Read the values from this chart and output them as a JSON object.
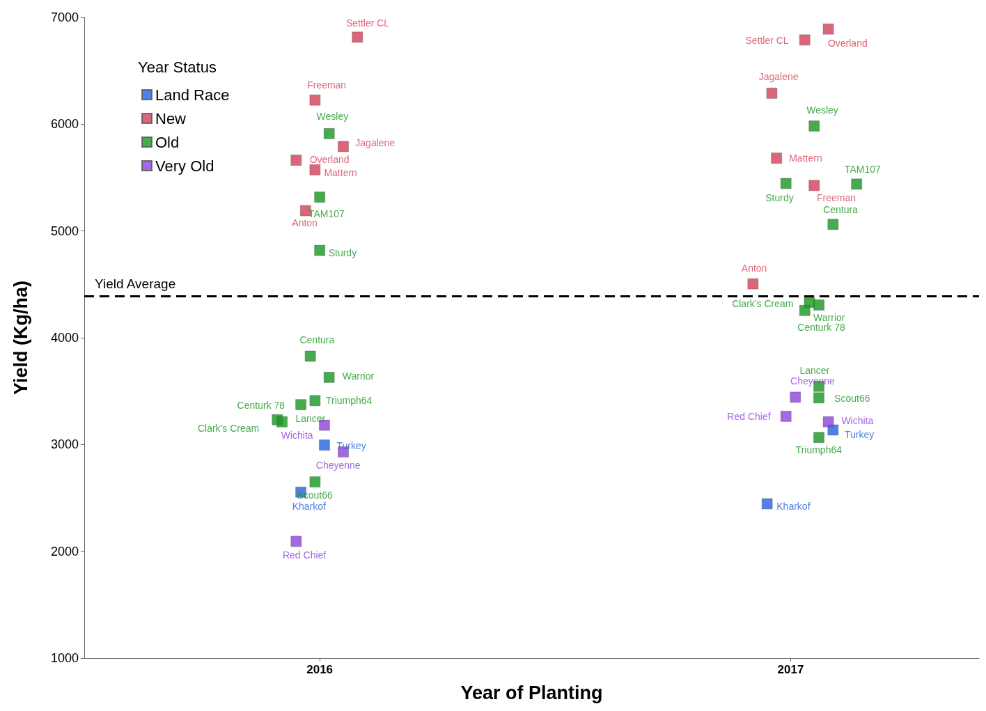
{
  "chart_data": {
    "type": "scatter",
    "xlabel": "Year of Planting",
    "ylabel": "Yield (Kg/ha)",
    "legend_title": "Year Status",
    "legend": "top left",
    "grid": false,
    "marker": "square",
    "xlim": [
      2015.5,
      2017.4
    ],
    "xticks": [
      2016,
      2017
    ],
    "ylim": [
      1000,
      7000
    ],
    "yticks": [
      1000,
      2000,
      3000,
      4000,
      5000,
      6000,
      7000
    ],
    "ref_lines": [
      {
        "axis": "y",
        "value": 4390,
        "label": "Yield Average",
        "color": "#000000",
        "line_style": "dashed"
      }
    ],
    "series": [
      {
        "name": "Land Race",
        "color": "#2462e0",
        "x": [
          2016.01,
          2015.96,
          2017.09,
          2016.95
        ],
        "values": [
          2995,
          2554,
          3136,
          2445
        ],
        "value_labels": [
          "Turkey",
          "Kharkof",
          "Turkey",
          "Kharkof"
        ]
      },
      {
        "name": "New",
        "color": "#d33f57",
        "x": [
          2016.08,
          2015.99,
          2016.05,
          2015.95,
          2015.99,
          2015.97,
          2017.08,
          2017.03,
          2016.96,
          2016.97,
          2017.05,
          2016.92
        ],
        "values": [
          6815,
          6226,
          5791,
          5663,
          5573,
          5190,
          6891,
          6789,
          6290,
          5682,
          5426,
          4505
        ],
        "value_labels": [
          "Settler CL",
          "Freeman",
          "Jagalene",
          "Overland",
          "Mattern",
          "Anton",
          "Overland",
          "Settler CL",
          "Jagalene",
          "Mattern",
          "Freeman",
          "Anton"
        ]
      },
      {
        "name": "Old",
        "color": "#17961f",
        "x": [
          2016.02,
          2016.0,
          2016.0,
          2015.98,
          2016.02,
          2015.99,
          2015.96,
          2015.91,
          2015.92,
          2015.99,
          2017.05,
          2016.99,
          2017.14,
          2017.09,
          2017.04,
          2017.06,
          2017.03,
          2017.06,
          2017.06,
          2017.06
        ],
        "values": [
          5912,
          5317,
          4818,
          3827,
          3629,
          3411,
          3373,
          3232,
          3213,
          2650,
          5983,
          5445,
          5439,
          5062,
          4332,
          4307,
          4256,
          3545,
          3437,
          3066
        ],
        "value_labels": [
          "Wesley",
          "TAM107",
          "Sturdy",
          "Centura",
          "Warrior",
          "Triumph64",
          "Centurk 78",
          "Clark's Cream",
          "Lancer",
          "Scout66",
          "Wesley",
          "Sturdy",
          "TAM107",
          "Centura",
          "Clark's Cream",
          "Warrior",
          "Centurk 78",
          "Lancer",
          "Scout66",
          "Triumph64"
        ]
      },
      {
        "name": "Very Old",
        "color": "#8c42dc",
        "x": [
          2016.01,
          2016.05,
          2015.95,
          2017.01,
          2016.99,
          2017.08
        ],
        "values": [
          3181,
          2931,
          2093,
          3443,
          3264,
          3213
        ],
        "value_labels": [
          "Wichita",
          "Cheyenne",
          "Red Chief",
          "Cheyenne",
          "Red Chief",
          "Wichita"
        ]
      }
    ]
  }
}
